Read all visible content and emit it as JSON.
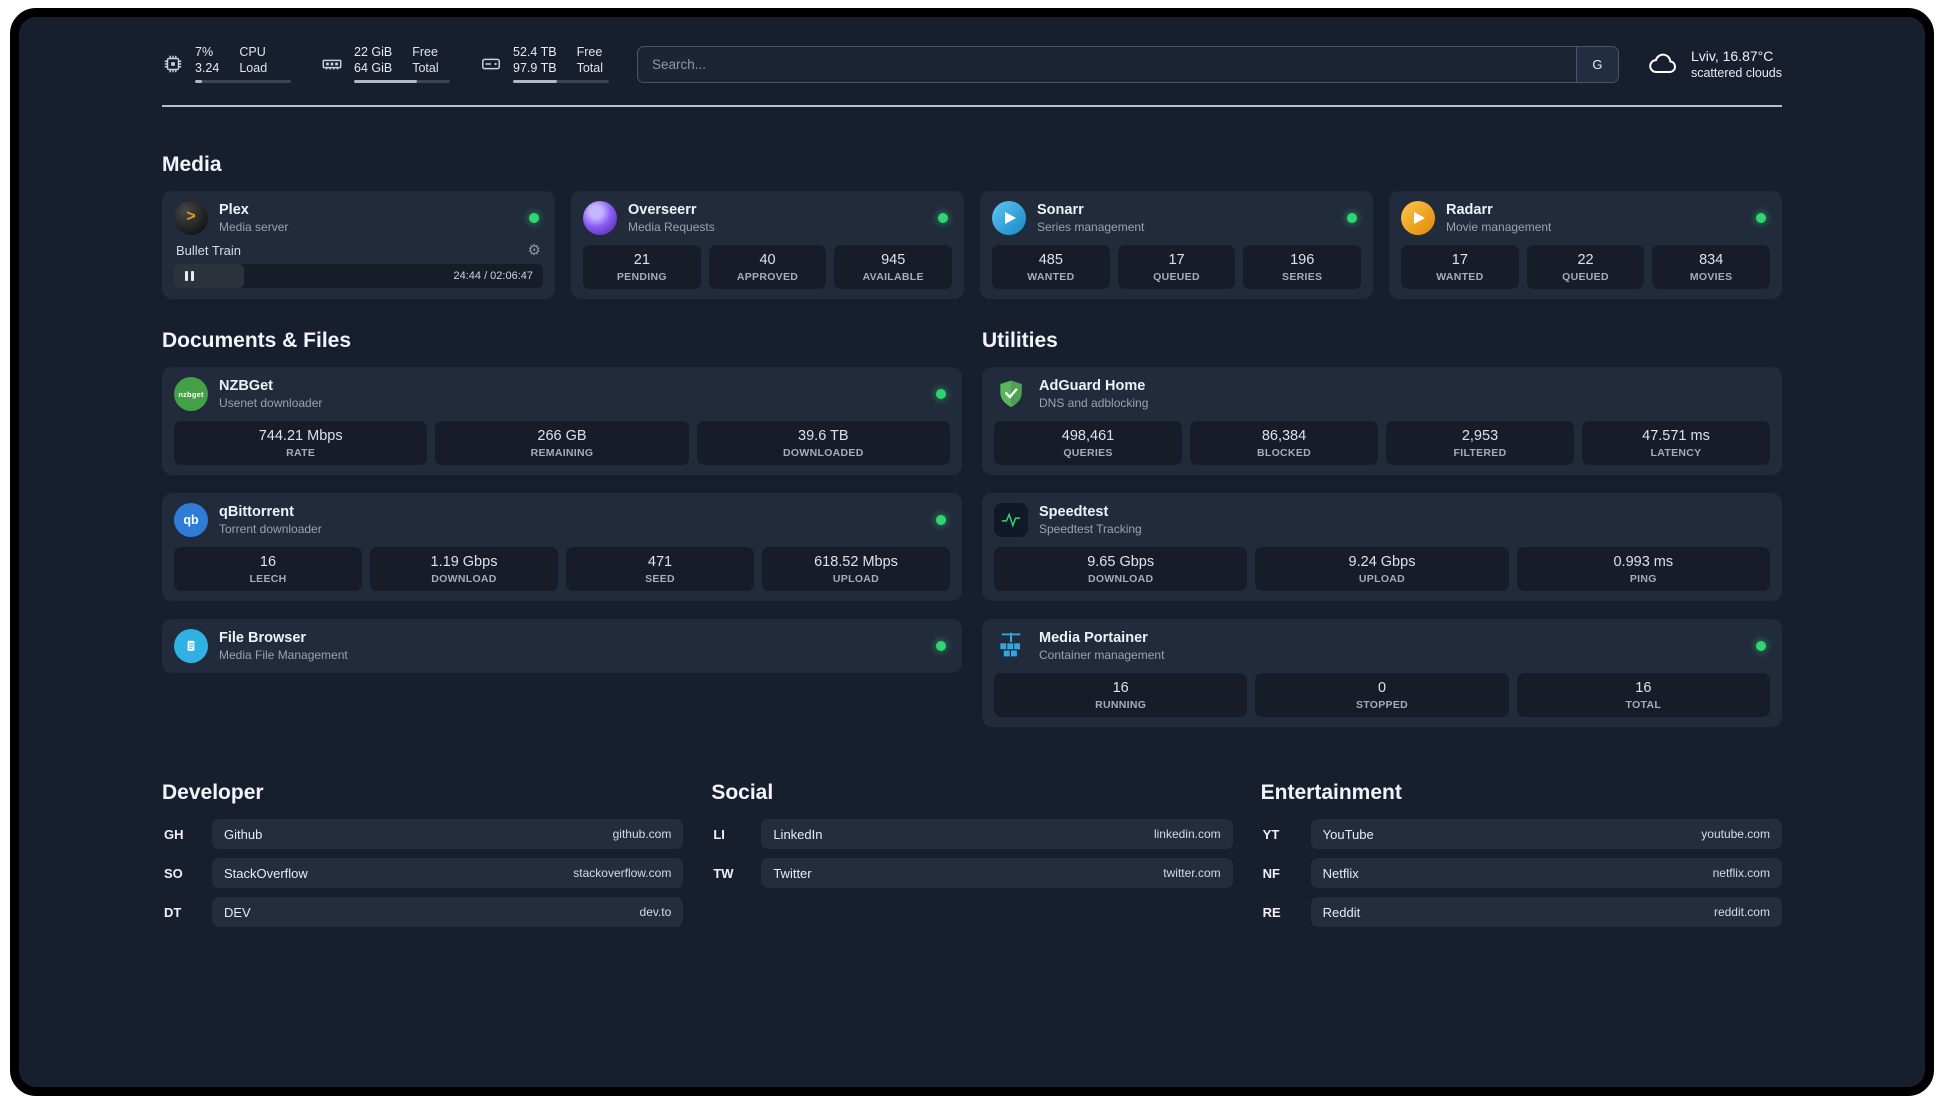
{
  "colors": {
    "green": "#2fd573",
    "amber": "#e5a00d"
  },
  "topbar": {
    "resources": [
      {
        "icon": "cpu-icon",
        "values": [
          "7%",
          "3.24"
        ],
        "labels": [
          "CPU",
          "Load"
        ],
        "progress_pct": 7
      },
      {
        "icon": "ram-icon",
        "values": [
          "22 GiB",
          "64 GiB"
        ],
        "labels": [
          "Free",
          "Total"
        ],
        "progress_pct": 66
      },
      {
        "icon": "disk-icon",
        "values": [
          "52.4 TB",
          "97.9 TB"
        ],
        "labels": [
          "Free",
          "Total"
        ],
        "progress_pct": 46
      }
    ],
    "search": {
      "placeholder": "Search...",
      "button_label": "G"
    },
    "weather": {
      "icon": "cloud-icon",
      "location": "Lviv, 16.87°C",
      "condition": "scattered clouds"
    }
  },
  "media": {
    "title": "Media",
    "cards": [
      {
        "icon": "plex-icon",
        "glyph": ">",
        "name": "Plex",
        "subtitle": "Media server",
        "online": true,
        "now_playing": "Bullet Train",
        "gear": "⚙",
        "time": "24:44 / 02:06:47",
        "progress_pct": 19
      },
      {
        "icon": "overseerr-icon",
        "name": "Overseerr",
        "subtitle": "Media Requests",
        "online": true,
        "stats": [
          {
            "value": "21",
            "label": "PENDING"
          },
          {
            "value": "40",
            "label": "APPROVED"
          },
          {
            "value": "945",
            "label": "AVAILABLE"
          }
        ]
      },
      {
        "icon": "sonarr-icon",
        "name": "Sonarr",
        "subtitle": "Series management",
        "online": true,
        "stats": [
          {
            "value": "485",
            "label": "WANTED"
          },
          {
            "value": "17",
            "label": "QUEUED"
          },
          {
            "value": "196",
            "label": "SERIES"
          }
        ]
      },
      {
        "icon": "radarr-icon",
        "name": "Radarr",
        "subtitle": "Movie management",
        "online": true,
        "stats": [
          {
            "value": "17",
            "label": "WANTED"
          },
          {
            "value": "22",
            "label": "QUEUED"
          },
          {
            "value": "834",
            "label": "MOVIES"
          }
        ]
      }
    ]
  },
  "files": {
    "title": "Documents & Files",
    "cards": [
      {
        "icon": "nzbget-icon",
        "glyph": "nzbget",
        "name": "NZBGet",
        "subtitle": "Usenet downloader",
        "online": true,
        "stats": [
          {
            "value": "744.21 Mbps",
            "label": "RATE"
          },
          {
            "value": "266 GB",
            "label": "REMAINING"
          },
          {
            "value": "39.6 TB",
            "label": "DOWNLOADED"
          }
        ]
      },
      {
        "icon": "qbittorrent-icon",
        "glyph": "qb",
        "name": "qBittorrent",
        "subtitle": "Torrent downloader",
        "online": true,
        "stats": [
          {
            "value": "16",
            "label": "LEECH"
          },
          {
            "value": "1.19 Gbps",
            "label": "DOWNLOAD"
          },
          {
            "value": "471",
            "label": "SEED"
          },
          {
            "value": "618.52 Mbps",
            "label": "UPLOAD"
          }
        ]
      },
      {
        "icon": "filebrowser-icon",
        "name": "File Browser",
        "subtitle": "Media File Management",
        "online": true
      }
    ]
  },
  "utilities": {
    "title": "Utilities",
    "cards": [
      {
        "icon": "adguard-icon",
        "name": "AdGuard Home",
        "subtitle": "DNS and adblocking",
        "stats": [
          {
            "value": "498,461",
            "label": "QUERIES"
          },
          {
            "value": "86,384",
            "label": "BLOCKED"
          },
          {
            "value": "2,953",
            "label": "FILTERED"
          },
          {
            "value": "47.571 ms",
            "label": "LATENCY"
          }
        ]
      },
      {
        "icon": "speedtest-icon",
        "name": "Speedtest",
        "subtitle": "Speedtest Tracking",
        "stats": [
          {
            "value": "9.65 Gbps",
            "label": "DOWNLOAD"
          },
          {
            "value": "9.24 Gbps",
            "label": "UPLOAD"
          },
          {
            "value": "0.993 ms",
            "label": "PING"
          }
        ]
      },
      {
        "icon": "portainer-icon",
        "name": "Media Portainer",
        "subtitle": "Container management",
        "online": true,
        "stats": [
          {
            "value": "16",
            "label": "RUNNING"
          },
          {
            "value": "0",
            "label": "STOPPED"
          },
          {
            "value": "16",
            "label": "TOTAL"
          }
        ]
      }
    ]
  },
  "bookmarks": {
    "groups": [
      {
        "title": "Developer",
        "items": [
          {
            "abbr": "GH",
            "name": "Github",
            "url": "github.com"
          },
          {
            "abbr": "SO",
            "name": "StackOverflow",
            "url": "stackoverflow.com"
          },
          {
            "abbr": "DT",
            "name": "DEV",
            "url": "dev.to"
          }
        ]
      },
      {
        "title": "Social",
        "items": [
          {
            "abbr": "LI",
            "name": "LinkedIn",
            "url": "linkedin.com"
          },
          {
            "abbr": "TW",
            "name": "Twitter",
            "url": "twitter.com"
          }
        ]
      },
      {
        "title": "Entertainment",
        "items": [
          {
            "abbr": "YT",
            "name": "YouTube",
            "url": "youtube.com"
          },
          {
            "abbr": "NF",
            "name": "Netflix",
            "url": "netflix.com"
          },
          {
            "abbr": "RE",
            "name": "Reddit",
            "url": "reddit.com"
          }
        ]
      }
    ]
  }
}
